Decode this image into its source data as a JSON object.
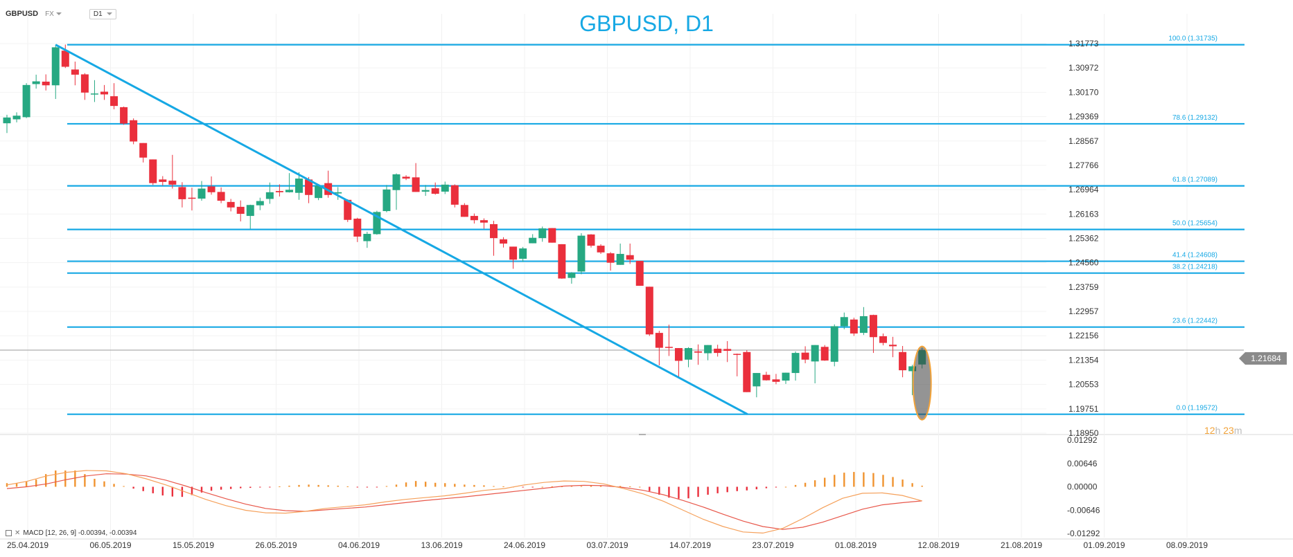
{
  "toolbar": {
    "symbol": "GBPUSD",
    "market": "FX",
    "timeframe": "D1"
  },
  "colors": {
    "accent": "#16a8e4",
    "bull": "#26a882",
    "bear": "#ea2f3c",
    "histogram": "#f0932f",
    "macd_line": "#f5a05a",
    "signal_line": "#e8574a",
    "price_tag": "#8a8a8a",
    "countdown": "#f2a33a"
  },
  "current_price": "1.21684",
  "countdown": {
    "hours": "12",
    "h_unit": "h",
    "minutes": "23",
    "m_unit": "m"
  },
  "macd_label": "MACD [12, 26, 9] -0.00394, -0.00394",
  "chart_data": [
    {
      "type": "candlestick",
      "title": "GBPUSD, D1",
      "ylim": [
        1.1895,
        1.3216
      ],
      "y_ticks": [
        "1.31773",
        "1.30972",
        "1.30170",
        "1.29369",
        "1.28567",
        "1.27766",
        "1.26964",
        "1.26163",
        "1.25362",
        "1.24560",
        "1.23759",
        "1.22957",
        "1.22156",
        "1.21354",
        "1.20553",
        "1.19751",
        "1.18950"
      ],
      "x_labels": [
        "25.04.2019",
        "06.05.2019",
        "15.05.2019",
        "26.05.2019",
        "04.06.2019",
        "13.06.2019",
        "24.06.2019",
        "03.07.2019",
        "14.07.2019",
        "23.07.2019",
        "01.08.2019",
        "12.08.2019",
        "21.08.2019",
        "01.09.2019",
        "08.09.2019"
      ],
      "fib_levels": [
        {
          "label": "100.0 (1.31735)",
          "value": 1.31735
        },
        {
          "label": "78.6 (1.29132)",
          "value": 1.29132
        },
        {
          "label": "61.8 (1.27089)",
          "value": 1.27089
        },
        {
          "label": "50.0 (1.25654)",
          "value": 1.25654
        },
        {
          "label": "41.4 (1.24608)",
          "value": 1.24608
        },
        {
          "label": "38.2 (1.24218)",
          "value": 1.24218
        },
        {
          "label": "23.6 (1.22442)",
          "value": 1.22442
        },
        {
          "label": "0.0 (1.19572)",
          "value": 1.19572
        }
      ],
      "trendline": {
        "from_index": 5,
        "from": 1.31735,
        "to_index": 76,
        "to": 1.19572
      },
      "highlight_candle_index": 94,
      "candles": [
        {
          "o": 1.2915,
          "h": 1.2943,
          "l": 1.2883,
          "c": 1.2934
        },
        {
          "o": 1.2928,
          "h": 1.2951,
          "l": 1.2918,
          "c": 1.294
        },
        {
          "o": 1.2935,
          "h": 1.3047,
          "l": 1.2932,
          "c": 1.3041
        },
        {
          "o": 1.3044,
          "h": 1.3075,
          "l": 1.3029,
          "c": 1.3053
        },
        {
          "o": 1.3052,
          "h": 1.3076,
          "l": 1.3023,
          "c": 1.304
        },
        {
          "o": 1.304,
          "h": 1.3174,
          "l": 1.2995,
          "c": 1.3165
        },
        {
          "o": 1.3154,
          "h": 1.3174,
          "l": 1.3097,
          "c": 1.3101
        },
        {
          "o": 1.3092,
          "h": 1.3118,
          "l": 1.304,
          "c": 1.3075
        },
        {
          "o": 1.3076,
          "h": 1.308,
          "l": 1.2992,
          "c": 1.3016
        },
        {
          "o": 1.301,
          "h": 1.3057,
          "l": 1.2985,
          "c": 1.3013
        },
        {
          "o": 1.3019,
          "h": 1.3041,
          "l": 1.2992,
          "c": 1.301
        },
        {
          "o": 1.3004,
          "h": 1.3047,
          "l": 1.2961,
          "c": 1.2972
        },
        {
          "o": 1.2968,
          "h": 1.297,
          "l": 1.291,
          "c": 1.2914
        },
        {
          "o": 1.2925,
          "h": 1.2931,
          "l": 1.2846,
          "c": 1.2855
        },
        {
          "o": 1.285,
          "h": 1.285,
          "l": 1.2786,
          "c": 1.2802
        },
        {
          "o": 1.2796,
          "h": 1.2796,
          "l": 1.2712,
          "c": 1.2718
        },
        {
          "o": 1.273,
          "h": 1.2741,
          "l": 1.271,
          "c": 1.2722
        },
        {
          "o": 1.2726,
          "h": 1.2811,
          "l": 1.27,
          "c": 1.2713
        },
        {
          "o": 1.2705,
          "h": 1.2721,
          "l": 1.2638,
          "c": 1.2665
        },
        {
          "o": 1.267,
          "h": 1.2703,
          "l": 1.2628,
          "c": 1.2668
        },
        {
          "o": 1.2667,
          "h": 1.2725,
          "l": 1.266,
          "c": 1.27
        },
        {
          "o": 1.2707,
          "h": 1.274,
          "l": 1.268,
          "c": 1.2688
        },
        {
          "o": 1.2689,
          "h": 1.2704,
          "l": 1.2652,
          "c": 1.266
        },
        {
          "o": 1.2656,
          "h": 1.2666,
          "l": 1.2625,
          "c": 1.2638
        },
        {
          "o": 1.264,
          "h": 1.2661,
          "l": 1.2592,
          "c": 1.2617
        },
        {
          "o": 1.261,
          "h": 1.2647,
          "l": 1.2568,
          "c": 1.2646
        },
        {
          "o": 1.2645,
          "h": 1.267,
          "l": 1.2629,
          "c": 1.2659
        },
        {
          "o": 1.2666,
          "h": 1.272,
          "l": 1.265,
          "c": 1.2688
        },
        {
          "o": 1.2692,
          "h": 1.2714,
          "l": 1.2674,
          "c": 1.2688
        },
        {
          "o": 1.2688,
          "h": 1.2751,
          "l": 1.2687,
          "c": 1.2696
        },
        {
          "o": 1.2686,
          "h": 1.2754,
          "l": 1.2663,
          "c": 1.2733
        },
        {
          "o": 1.273,
          "h": 1.2738,
          "l": 1.2652,
          "c": 1.2679
        },
        {
          "o": 1.2669,
          "h": 1.2712,
          "l": 1.2662,
          "c": 1.271
        },
        {
          "o": 1.2718,
          "h": 1.2759,
          "l": 1.267,
          "c": 1.2679
        },
        {
          "o": 1.2684,
          "h": 1.2705,
          "l": 1.2663,
          "c": 1.2688
        },
        {
          "o": 1.2663,
          "h": 1.2665,
          "l": 1.259,
          "c": 1.2597
        },
        {
          "o": 1.2601,
          "h": 1.2604,
          "l": 1.2524,
          "c": 1.2542
        },
        {
          "o": 1.2527,
          "h": 1.2558,
          "l": 1.2505,
          "c": 1.2551
        },
        {
          "o": 1.255,
          "h": 1.2627,
          "l": 1.2548,
          "c": 1.2623
        },
        {
          "o": 1.2626,
          "h": 1.2712,
          "l": 1.2622,
          "c": 1.2697
        },
        {
          "o": 1.2695,
          "h": 1.275,
          "l": 1.263,
          "c": 1.2747
        },
        {
          "o": 1.2739,
          "h": 1.2744,
          "l": 1.2728,
          "c": 1.2733
        },
        {
          "o": 1.2737,
          "h": 1.2784,
          "l": 1.2694,
          "c": 1.2689
        },
        {
          "o": 1.269,
          "h": 1.2712,
          "l": 1.2676,
          "c": 1.2695
        },
        {
          "o": 1.2701,
          "h": 1.272,
          "l": 1.268,
          "c": 1.2683
        },
        {
          "o": 1.269,
          "h": 1.2723,
          "l": 1.2682,
          "c": 1.2713
        },
        {
          "o": 1.2711,
          "h": 1.2714,
          "l": 1.2638,
          "c": 1.2647
        },
        {
          "o": 1.2646,
          "h": 1.2652,
          "l": 1.2607,
          "c": 1.2607
        },
        {
          "o": 1.261,
          "h": 1.2618,
          "l": 1.2585,
          "c": 1.2596
        },
        {
          "o": 1.2596,
          "h": 1.2602,
          "l": 1.2568,
          "c": 1.2588
        },
        {
          "o": 1.2583,
          "h": 1.2594,
          "l": 1.2479,
          "c": 1.2537
        },
        {
          "o": 1.2533,
          "h": 1.254,
          "l": 1.2506,
          "c": 1.2519
        },
        {
          "o": 1.2509,
          "h": 1.2509,
          "l": 1.2436,
          "c": 1.2466
        },
        {
          "o": 1.2469,
          "h": 1.2508,
          "l": 1.2459,
          "c": 1.2503
        },
        {
          "o": 1.252,
          "h": 1.255,
          "l": 1.2522,
          "c": 1.2538
        },
        {
          "o": 1.2537,
          "h": 1.2575,
          "l": 1.2525,
          "c": 1.2569
        },
        {
          "o": 1.257,
          "h": 1.257,
          "l": 1.2522,
          "c": 1.2522
        },
        {
          "o": 1.2517,
          "h": 1.2517,
          "l": 1.2403,
          "c": 1.2404
        },
        {
          "o": 1.2406,
          "h": 1.2425,
          "l": 1.2387,
          "c": 1.2423
        },
        {
          "o": 1.2427,
          "h": 1.2553,
          "l": 1.2418,
          "c": 1.2545
        },
        {
          "o": 1.2549,
          "h": 1.255,
          "l": 1.2506,
          "c": 1.2512
        },
        {
          "o": 1.2512,
          "h": 1.2517,
          "l": 1.2485,
          "c": 1.249
        },
        {
          "o": 1.2487,
          "h": 1.2491,
          "l": 1.243,
          "c": 1.2456
        },
        {
          "o": 1.2449,
          "h": 1.2519,
          "l": 1.245,
          "c": 1.2485
        },
        {
          "o": 1.2481,
          "h": 1.2519,
          "l": 1.2452,
          "c": 1.2466
        },
        {
          "o": 1.2462,
          "h": 1.2456,
          "l": 1.2381,
          "c": 1.238
        },
        {
          "o": 1.2377,
          "h": 1.2377,
          "l": 1.2215,
          "c": 1.222
        },
        {
          "o": 1.2225,
          "h": 1.2232,
          "l": 1.2118,
          "c": 1.2176
        },
        {
          "o": 1.2179,
          "h": 1.2252,
          "l": 1.2149,
          "c": 1.2176
        },
        {
          "o": 1.2175,
          "h": 1.2175,
          "l": 1.208,
          "c": 1.2133
        },
        {
          "o": 1.2137,
          "h": 1.2178,
          "l": 1.2112,
          "c": 1.2175
        },
        {
          "o": 1.2164,
          "h": 1.2187,
          "l": 1.212,
          "c": 1.216
        },
        {
          "o": 1.2158,
          "h": 1.2184,
          "l": 1.2135,
          "c": 1.2185
        },
        {
          "o": 1.2173,
          "h": 1.2186,
          "l": 1.2147,
          "c": 1.2159
        },
        {
          "o": 1.2172,
          "h": 1.2198,
          "l": 1.2129,
          "c": 1.2166
        },
        {
          "o": 1.2156,
          "h": 1.2157,
          "l": 1.2082,
          "c": 1.2155
        },
        {
          "o": 1.2162,
          "h": 1.2168,
          "l": 1.2033,
          "c": 1.203
        },
        {
          "o": 1.2049,
          "h": 1.2086,
          "l": 1.2013,
          "c": 1.2093
        },
        {
          "o": 1.2087,
          "h": 1.2097,
          "l": 1.2068,
          "c": 1.2069
        },
        {
          "o": 1.2072,
          "h": 1.209,
          "l": 1.2056,
          "c": 1.2064
        },
        {
          "o": 1.2068,
          "h": 1.2093,
          "l": 1.2057,
          "c": 1.2094
        },
        {
          "o": 1.2093,
          "h": 1.2164,
          "l": 1.2068,
          "c": 1.2159
        },
        {
          "o": 1.216,
          "h": 1.2181,
          "l": 1.2125,
          "c": 1.2137
        },
        {
          "o": 1.2131,
          "h": 1.2178,
          "l": 1.2059,
          "c": 1.2185
        },
        {
          "o": 1.2179,
          "h": 1.2185,
          "l": 1.2133,
          "c": 1.2134
        },
        {
          "o": 1.213,
          "h": 1.2253,
          "l": 1.2115,
          "c": 1.2247
        },
        {
          "o": 1.2247,
          "h": 1.2292,
          "l": 1.2237,
          "c": 1.2277
        },
        {
          "o": 1.2269,
          "h": 1.2275,
          "l": 1.2215,
          "c": 1.2223
        },
        {
          "o": 1.2225,
          "h": 1.231,
          "l": 1.2218,
          "c": 1.228
        },
        {
          "o": 1.2284,
          "h": 1.2285,
          "l": 1.2159,
          "c": 1.2211
        },
        {
          "o": 1.2214,
          "h": 1.2223,
          "l": 1.2184,
          "c": 1.2192
        },
        {
          "o": 1.2186,
          "h": 1.2212,
          "l": 1.2145,
          "c": 1.2181
        },
        {
          "o": 1.2162,
          "h": 1.2182,
          "l": 1.2079,
          "c": 1.2102
        },
        {
          "o": 1.2099,
          "h": 1.212,
          "l": 1.202,
          "c": 1.2115
        },
        {
          "o": 1.2121,
          "h": 1.2176,
          "l": 1.2108,
          "c": 1.2168
        }
      ]
    },
    {
      "type": "bar",
      "title": "MACD [12, 26, 9]",
      "ylim": [
        -0.01292,
        0.01292
      ],
      "y_ticks": [
        "0.01292",
        "0.00646",
        "0.00000",
        "-0.00646",
        "-0.01292"
      ],
      "histogram": [
        0.001,
        0.001,
        0.0015,
        0.002,
        0.0035,
        0.0045,
        0.0045,
        0.0045,
        0.0035,
        0.0022,
        0.0015,
        0.0008,
        0.0002,
        -0.0005,
        -0.0012,
        -0.0018,
        -0.0024,
        -0.0027,
        -0.0028,
        -0.0023,
        -0.0016,
        -0.0011,
        -0.0008,
        -0.0006,
        -0.0004,
        -0.0003,
        -0.0002,
        -0.0001,
        0.0001,
        0.0003,
        0.0005,
        0.0006,
        0.0005,
        0.0004,
        0.0003,
        0.0001,
        -0.0001,
        -0.0002,
        -0.0001,
        0.0002,
        0.0006,
        0.0012,
        0.0016,
        0.0014,
        0.0011,
        0.001,
        0.0008,
        0.0006,
        0.0005,
        0.0004,
        0.0002,
        0.0001,
        0,
        -0.0001,
        -0.0001,
        0,
        0.0001,
        0.0001,
        0.0002,
        0.0002,
        0.0003,
        0.0003,
        0.0002,
        0.0002,
        0.0001,
        0,
        -0.0012,
        -0.0022,
        -0.003,
        -0.0033,
        -0.0032,
        -0.0028,
        -0.0022,
        -0.0018,
        -0.0015,
        -0.0012,
        -0.001,
        -0.0007,
        -0.0004,
        -0.0002,
        0,
        0.0005,
        0.0011,
        0.0018,
        0.0025,
        0.0033,
        0.0039,
        0.0041,
        0.004,
        0.0038,
        0.0033,
        0.0027,
        0.002,
        0.001,
        0.0003
      ],
      "macd_line": [
        0.0005,
        0.0015,
        0.003,
        0.004,
        0.0045,
        0.0044,
        0.0036,
        0.0022,
        0.0005,
        -0.0015,
        -0.0035,
        -0.0052,
        -0.0065,
        -0.0072,
        -0.0073,
        -0.0068,
        -0.006,
        -0.0055,
        -0.005,
        -0.0042,
        -0.0035,
        -0.003,
        -0.0025,
        -0.0018,
        -0.001,
        -0.0005,
        0.0005,
        0.0012,
        0.0016,
        0.0015,
        0.0008,
        -0.0005,
        -0.002,
        -0.004,
        -0.0065,
        -0.009,
        -0.011,
        -0.0125,
        -0.0128,
        -0.0115,
        -0.0088,
        -0.0058,
        -0.0032,
        -0.0018,
        -0.0017,
        -0.0024,
        -0.0039
      ],
      "signal_line": [
        -0.0005,
        0.0,
        0.0008,
        0.002,
        0.003,
        0.0036,
        0.0035,
        0.003,
        0.0018,
        0.0002,
        -0.0016,
        -0.0033,
        -0.0048,
        -0.006,
        -0.0066,
        -0.0068,
        -0.0064,
        -0.006,
        -0.0056,
        -0.005,
        -0.0044,
        -0.0038,
        -0.0033,
        -0.0028,
        -0.0022,
        -0.0016,
        -0.001,
        -0.0004,
        0.0002,
        0.0004,
        0.0003,
        -0.0002,
        -0.001,
        -0.0022,
        -0.0038,
        -0.0056,
        -0.0076,
        -0.0095,
        -0.011,
        -0.0118,
        -0.0112,
        -0.0098,
        -0.008,
        -0.0062,
        -0.005,
        -0.0044,
        -0.0039
      ]
    }
  ]
}
